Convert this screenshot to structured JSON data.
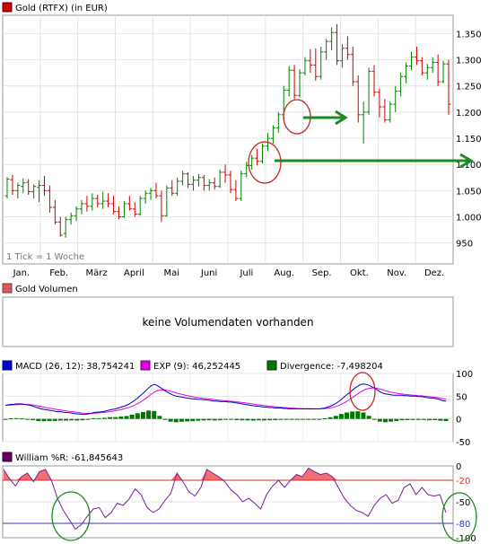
{
  "chart_data": [
    {
      "panel": "price",
      "type": "ohlc",
      "legend": "Gold (RTFX) (in EUR)",
      "colors": {
        "legend": "#cc0000",
        "up": "#008000",
        "down": "#cc0000"
      },
      "months": [
        "Jan.",
        "Feb.",
        "März",
        "April",
        "Mai",
        "Juni",
        "Juli",
        "Aug.",
        "Sep.",
        "Okt.",
        "Nov.",
        "Dez."
      ],
      "y_ticks": [
        "1.350",
        "1.300",
        "1.250",
        "1.200",
        "1.150",
        "1.100",
        "1.050",
        "1.000",
        "950"
      ],
      "ylim": [
        910,
        1385
      ],
      "tick_note": "1 Tick = 1 Woche",
      "ohlc": [
        [
          1040,
          1076,
          1035,
          1072
        ],
        [
          1071,
          1080,
          1042,
          1050
        ],
        [
          1050,
          1065,
          1035,
          1060
        ],
        [
          1058,
          1073,
          1045,
          1065
        ],
        [
          1066,
          1072,
          1042,
          1048
        ],
        [
          1048,
          1062,
          1035,
          1058
        ],
        [
          1056,
          1070,
          1028,
          1060
        ],
        [
          1060,
          1078,
          1040,
          1050
        ],
        [
          1050,
          1060,
          1008,
          1018
        ],
        [
          1018,
          1032,
          985,
          990
        ],
        [
          990,
          1000,
          962,
          965
        ],
        [
          968,
          1000,
          960,
          995
        ],
        [
          995,
          1008,
          985,
          1002
        ],
        [
          1002,
          1020,
          992,
          1015
        ],
        [
          1015,
          1032,
          1005,
          1025
        ],
        [
          1025,
          1040,
          1010,
          1020
        ],
        [
          1020,
          1045,
          1012,
          1035
        ],
        [
          1035,
          1042,
          1018,
          1025
        ],
        [
          1025,
          1048,
          1015,
          1030
        ],
        [
          1030,
          1045,
          1018,
          1025
        ],
        [
          1025,
          1040,
          1005,
          1010
        ],
        [
          1010,
          1020,
          995,
          1000
        ],
        [
          1000,
          1030,
          998,
          1025
        ],
        [
          1025,
          1040,
          1012,
          1015
        ],
        [
          1015,
          1028,
          1000,
          1005
        ],
        [
          1005,
          1040,
          1002,
          1035
        ],
        [
          1035,
          1050,
          1025,
          1045
        ],
        [
          1045,
          1055,
          1032,
          1050
        ],
        [
          1050,
          1065,
          1035,
          1040
        ],
        [
          1040,
          1050,
          990,
          1002
        ],
        [
          1002,
          1060,
          1000,
          1055
        ],
        [
          1055,
          1070,
          1040,
          1045
        ],
        [
          1045,
          1075,
          1040,
          1068
        ],
        [
          1068,
          1088,
          1060,
          1082
        ],
        [
          1082,
          1085,
          1055,
          1062
        ],
        [
          1062,
          1078,
          1050,
          1070
        ],
        [
          1070,
          1082,
          1058,
          1075
        ],
        [
          1075,
          1080,
          1050,
          1060
        ],
        [
          1060,
          1072,
          1050,
          1065
        ],
        [
          1065,
          1075,
          1052,
          1058
        ],
        [
          1058,
          1090,
          1055,
          1085
        ],
        [
          1085,
          1100,
          1065,
          1080
        ],
        [
          1080,
          1088,
          1045,
          1052
        ],
        [
          1052,
          1070,
          1030,
          1035
        ],
        [
          1035,
          1088,
          1030,
          1082
        ],
        [
          1082,
          1105,
          1075,
          1098
        ],
        [
          1098,
          1118,
          1090,
          1112
        ],
        [
          1112,
          1130,
          1098,
          1106
        ],
        [
          1106,
          1140,
          1102,
          1135
        ],
        [
          1135,
          1160,
          1125,
          1150
        ],
        [
          1150,
          1175,
          1140,
          1170
        ],
        [
          1170,
          1200,
          1160,
          1195
        ],
        [
          1195,
          1250,
          1185,
          1242
        ],
        [
          1242,
          1288,
          1230,
          1280
        ],
        [
          1280,
          1290,
          1225,
          1232
        ],
        [
          1232,
          1282,
          1228,
          1275
        ],
        [
          1275,
          1305,
          1270,
          1298
        ],
        [
          1298,
          1320,
          1275,
          1290
        ],
        [
          1290,
          1322,
          1260,
          1268
        ],
        [
          1268,
          1325,
          1262,
          1315
        ],
        [
          1315,
          1340,
          1300,
          1335
        ],
        [
          1335,
          1362,
          1318,
          1352
        ],
        [
          1352,
          1368,
          1290,
          1298
        ],
        [
          1298,
          1330,
          1285,
          1322
        ],
        [
          1322,
          1345,
          1300,
          1310
        ],
        [
          1310,
          1325,
          1250,
          1258
        ],
        [
          1258,
          1270,
          1180,
          1195
        ],
        [
          1195,
          1220,
          1140,
          1200
        ],
        [
          1200,
          1285,
          1195,
          1278
        ],
        [
          1278,
          1290,
          1230,
          1238
        ],
        [
          1238,
          1245,
          1190,
          1210
        ],
        [
          1210,
          1225,
          1180,
          1185
        ],
        [
          1185,
          1220,
          1180,
          1215
        ],
        [
          1215,
          1250,
          1200,
          1240
        ],
        [
          1240,
          1275,
          1230,
          1268
        ],
        [
          1268,
          1295,
          1255,
          1288
        ],
        [
          1288,
          1315,
          1280,
          1305
        ],
        [
          1305,
          1325,
          1290,
          1298
        ],
        [
          1298,
          1305,
          1270,
          1275
        ],
        [
          1275,
          1292,
          1262,
          1285
        ],
        [
          1285,
          1305,
          1275,
          1295
        ],
        [
          1295,
          1310,
          1250,
          1258
        ],
        [
          1258,
          1298,
          1255,
          1292
        ],
        [
          1292,
          1300,
          1195,
          1215
        ]
      ]
    },
    {
      "panel": "volume",
      "legend": "Gold Volumen",
      "message": "keine Volumendaten vorhanden",
      "colors": {
        "legend": "#d35a5a"
      }
    },
    {
      "panel": "macd",
      "type": "line+bar",
      "legend": [
        {
          "label": "MACD (26, 12): 38,754241",
          "color": "#0000cc"
        },
        {
          "label": "EXP (9): 46,252445",
          "color": "#e000e0"
        },
        {
          "label": "Divergence: -7,498204",
          "color": "#007700"
        }
      ],
      "y_ticks": [
        "100",
        "50",
        "0",
        "-50"
      ],
      "ylim": [
        -50,
        100
      ],
      "macd": [
        30,
        31,
        32,
        32,
        33,
        33,
        33,
        32,
        31,
        30,
        28,
        26,
        24,
        22,
        21,
        20,
        19,
        18,
        17,
        16,
        16,
        15,
        14,
        14,
        13,
        12,
        11,
        11,
        10,
        10,
        11,
        12,
        14,
        15,
        15,
        16,
        17,
        18,
        20,
        21,
        22,
        24,
        26,
        28,
        30,
        33,
        37,
        41,
        46,
        51,
        56,
        62,
        68,
        73,
        76,
        74,
        70,
        66,
        62,
        58,
        55,
        52,
        50,
        49,
        48,
        47,
        46,
        45,
        44,
        44,
        43,
        43,
        42,
        42,
        41,
        40,
        39,
        39,
        38,
        38,
        38,
        37,
        37,
        36,
        35,
        34,
        33,
        32,
        31,
        30,
        29,
        28,
        28,
        27,
        26,
        26,
        25,
        25,
        24,
        24,
        24,
        23,
        23,
        22,
        22,
        22,
        22,
        22,
        22,
        22,
        22,
        22,
        22,
        22,
        22,
        23,
        24,
        26,
        28,
        31,
        34,
        38,
        43,
        48,
        53,
        58,
        63,
        68,
        72,
        76,
        77,
        76,
        74,
        71,
        68,
        64,
        60,
        57,
        55,
        54,
        53,
        52,
        52,
        52,
        52,
        51,
        51,
        50,
        50,
        50,
        49,
        49,
        48,
        47,
        46,
        46,
        45,
        44,
        42,
        40,
        39
      ]
    },
    {
      "panel": "williams",
      "type": "line",
      "legend": "William %R: -61,845643",
      "colors": {
        "legend": "#660066",
        "line": "#7a1f9a",
        "fill": "#f07070",
        "upper": "#cc3333",
        "lower": "#3333cc"
      },
      "y_ticks": [
        "0",
        "-20",
        "-50",
        "-80",
        "-100"
      ],
      "ylim": [
        -100,
        0
      ],
      "thresholds": [
        -20,
        -80
      ],
      "values": [
        -5,
        -18,
        -28,
        -15,
        -10,
        -22,
        -8,
        -5,
        -20,
        -45,
        -62,
        -75,
        -88,
        -82,
        -70,
        -60,
        -58,
        -72,
        -65,
        -52,
        -55,
        -46,
        -32,
        -40,
        -58,
        -65,
        -60,
        -48,
        -38,
        -10,
        -22,
        -36,
        -42,
        -30,
        -5,
        -10,
        -15,
        -22,
        -33,
        -40,
        -50,
        -45,
        -52,
        -60,
        -40,
        -28,
        -20,
        -30,
        -20,
        -12,
        -15,
        -3,
        -8,
        -12,
        -10,
        -15,
        -30,
        -45,
        -55,
        -62,
        -65,
        -70,
        -55,
        -45,
        -40,
        -52,
        -48,
        -30,
        -25,
        -40,
        -30,
        -40,
        -42,
        -40,
        -65
      ]
    }
  ]
}
